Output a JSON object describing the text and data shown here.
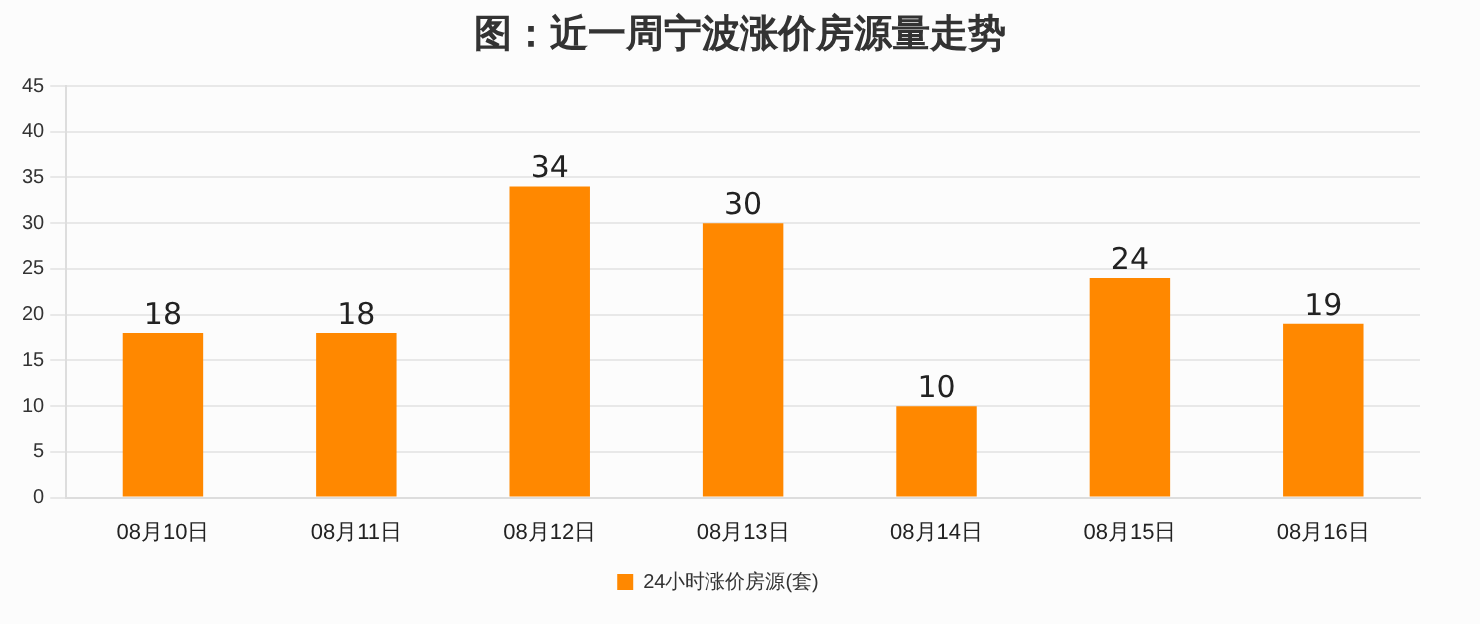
{
  "chart_data": {
    "type": "bar",
    "title": "图：近一周宁波涨价房源量走势",
    "categories": [
      "08月10日",
      "08月11日",
      "08月12日",
      "08月13日",
      "08月14日",
      "08月15日",
      "08月16日"
    ],
    "series": [
      {
        "name": "24小时涨价房源(套)",
        "color": "#ff8800",
        "values": [
          18,
          18,
          34,
          30,
          10,
          24,
          19
        ]
      }
    ],
    "ylim": [
      0,
      45
    ],
    "yticks": [
      0,
      5,
      10,
      15,
      20,
      25,
      30,
      35,
      40,
      45
    ],
    "grid": "y",
    "legend": "bottom",
    "data_labels": true
  }
}
